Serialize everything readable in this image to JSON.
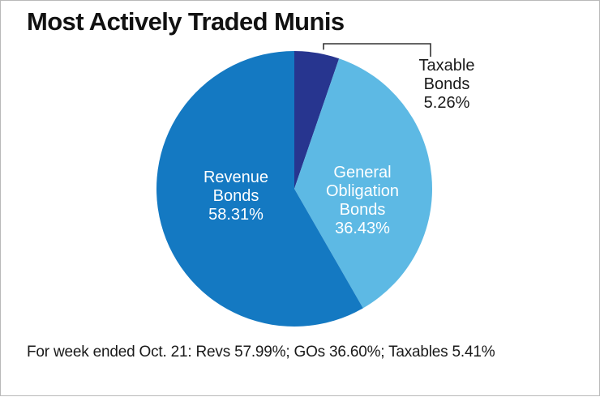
{
  "title": "Most Actively Traded Munis",
  "footnote": "For week ended Oct. 21: Revs 57.99%; GOs 36.60%; Taxables 5.41%",
  "chart_data": {
    "type": "pie",
    "title": "Most Actively Traded Munis",
    "slices": [
      {
        "label": "Taxable Bonds",
        "value": 5.26,
        "color": "#27358f",
        "label_lines": [
          "Taxable",
          "Bonds",
          "5.26%"
        ],
        "label_color": "#1a1a1a",
        "label_outside": true
      },
      {
        "label": "General Obligation Bonds",
        "value": 36.43,
        "color": "#5db9e4",
        "label_lines": [
          "General",
          "Obligation",
          "Bonds",
          "36.43%"
        ],
        "label_color": "#ffffff",
        "label_outside": false
      },
      {
        "label": "Revenue Bonds",
        "value": 58.31,
        "color": "#1479c2",
        "label_lines": [
          "Revenue",
          "Bonds",
          "58.31%"
        ],
        "label_color": "#ffffff",
        "label_outside": false
      }
    ],
    "start_angle_deg": 0,
    "direction": "clockwise",
    "legend": "none"
  }
}
